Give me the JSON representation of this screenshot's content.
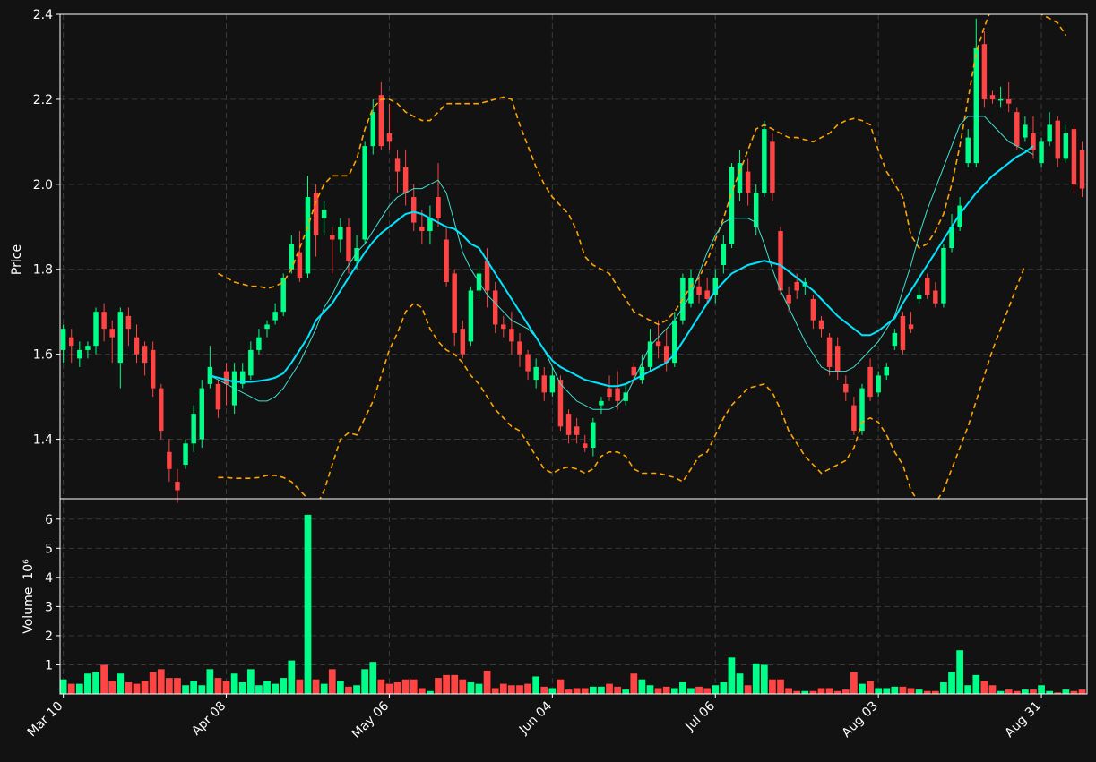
{
  "chart_data": {
    "type": "candlestick",
    "colors": {
      "background": "#121212",
      "up": "#00ff88",
      "down": "#ff4444",
      "sma_short": "#40e0d0",
      "sma_long": "#00e5ff",
      "bollinger": "#ffa500",
      "grid": "#3a3a3a",
      "text": "#ffffff"
    },
    "price_panel": {
      "ylabel": "Price",
      "ylim": [
        1.26,
        2.4
      ],
      "yticks": [
        1.4,
        1.6,
        1.8,
        2.0,
        2.2,
        2.4
      ],
      "ytick_labels": [
        "1.4",
        "1.6",
        "1.8",
        "2.0",
        "2.2",
        "2.4"
      ],
      "grid": true
    },
    "volume_panel": {
      "ylabel": "Volume",
      "ylabel_unit": "10⁶",
      "ylim": [
        0,
        6.7
      ],
      "yticks": [
        1,
        2,
        3,
        4,
        5,
        6
      ],
      "ytick_labels": [
        "1",
        "2",
        "3",
        "4",
        "5",
        "6"
      ],
      "grid": true
    },
    "xlim": [
      -0.4,
      125.6
    ],
    "x_ticks": [
      {
        "index": 0,
        "label": "Mar 10"
      },
      {
        "index": 20,
        "label": "Apr 08"
      },
      {
        "index": 40,
        "label": "May 06"
      },
      {
        "index": 60,
        "label": "Jun 04"
      },
      {
        "index": 80,
        "label": "Jul 06"
      },
      {
        "index": 100,
        "label": "Aug 03"
      },
      {
        "index": 120,
        "label": "Aug 31"
      }
    ],
    "ohlc": [
      [
        1.61,
        1.66,
        1.67,
        1.58
      ],
      [
        1.64,
        1.62,
        1.66,
        1.58
      ],
      [
        1.59,
        1.61,
        1.63,
        1.57
      ],
      [
        1.61,
        1.62,
        1.63,
        1.59
      ],
      [
        1.62,
        1.7,
        1.71,
        1.6
      ],
      [
        1.7,
        1.66,
        1.72,
        1.63
      ],
      [
        1.66,
        1.64,
        1.68,
        1.58
      ],
      [
        1.58,
        1.7,
        1.71,
        1.52
      ],
      [
        1.69,
        1.66,
        1.71,
        1.62
      ],
      [
        1.64,
        1.6,
        1.67,
        1.58
      ],
      [
        1.62,
        1.58,
        1.63,
        1.55
      ],
      [
        1.61,
        1.52,
        1.63,
        1.5
      ],
      [
        1.52,
        1.42,
        1.53,
        1.4
      ],
      [
        1.37,
        1.33,
        1.4,
        1.3
      ],
      [
        1.3,
        1.28,
        1.33,
        1.25
      ],
      [
        1.34,
        1.39,
        1.4,
        1.33
      ],
      [
        1.39,
        1.46,
        1.48,
        1.37
      ],
      [
        1.4,
        1.52,
        1.54,
        1.38
      ],
      [
        1.53,
        1.57,
        1.62,
        1.52
      ],
      [
        1.53,
        1.47,
        1.54,
        1.45
      ],
      [
        1.56,
        1.53,
        1.58,
        1.48
      ],
      [
        1.48,
        1.56,
        1.58,
        1.46
      ],
      [
        1.53,
        1.56,
        1.58,
        1.52
      ],
      [
        1.55,
        1.61,
        1.63,
        1.54
      ],
      [
        1.61,
        1.64,
        1.66,
        1.6
      ],
      [
        1.66,
        1.67,
        1.68,
        1.64
      ],
      [
        1.68,
        1.7,
        1.72,
        1.67
      ],
      [
        1.7,
        1.78,
        1.79,
        1.69
      ],
      [
        1.8,
        1.86,
        1.88,
        1.79
      ],
      [
        1.84,
        1.78,
        1.89,
        1.77
      ],
      [
        1.79,
        1.97,
        2.02,
        1.78
      ],
      [
        1.98,
        1.88,
        2.0,
        1.83
      ],
      [
        1.92,
        1.94,
        1.96,
        1.88
      ],
      [
        1.88,
        1.87,
        1.9,
        1.79
      ],
      [
        1.87,
        1.9,
        1.92,
        1.84
      ],
      [
        1.9,
        1.82,
        1.92,
        1.79
      ],
      [
        1.82,
        1.85,
        1.88,
        1.8
      ],
      [
        1.87,
        2.09,
        2.1,
        1.86
      ],
      [
        2.09,
        2.17,
        2.2,
        2.07
      ],
      [
        2.21,
        2.09,
        2.24,
        2.08
      ],
      [
        2.12,
        2.1,
        2.19,
        2.08
      ],
      [
        2.06,
        2.03,
        2.08,
        1.98
      ],
      [
        2.04,
        1.98,
        2.08,
        1.95
      ],
      [
        1.97,
        1.91,
        2.0,
        1.89
      ],
      [
        1.9,
        1.89,
        1.94,
        1.86
      ],
      [
        1.89,
        1.92,
        1.95,
        1.86
      ],
      [
        1.97,
        1.92,
        2.05,
        1.9
      ],
      [
        1.87,
        1.77,
        1.9,
        1.76
      ],
      [
        1.79,
        1.65,
        1.8,
        1.62
      ],
      [
        1.66,
        1.6,
        1.68,
        1.59
      ],
      [
        1.63,
        1.75,
        1.76,
        1.62
      ],
      [
        1.75,
        1.79,
        1.81,
        1.73
      ],
      [
        1.82,
        1.75,
        1.85,
        1.71
      ],
      [
        1.75,
        1.67,
        1.77,
        1.65
      ],
      [
        1.67,
        1.66,
        1.69,
        1.64
      ],
      [
        1.66,
        1.63,
        1.7,
        1.6
      ],
      [
        1.63,
        1.6,
        1.65,
        1.57
      ],
      [
        1.6,
        1.56,
        1.61,
        1.54
      ],
      [
        1.54,
        1.57,
        1.59,
        1.52
      ],
      [
        1.55,
        1.51,
        1.57,
        1.49
      ],
      [
        1.51,
        1.55,
        1.57,
        1.5
      ],
      [
        1.54,
        1.43,
        1.55,
        1.42
      ],
      [
        1.46,
        1.41,
        1.47,
        1.39
      ],
      [
        1.43,
        1.41,
        1.45,
        1.39
      ],
      [
        1.39,
        1.38,
        1.41,
        1.37
      ],
      [
        1.38,
        1.44,
        1.45,
        1.36
      ],
      [
        1.48,
        1.49,
        1.5,
        1.46
      ],
      [
        1.52,
        1.5,
        1.55,
        1.49
      ],
      [
        1.52,
        1.49,
        1.56,
        1.47
      ],
      [
        1.49,
        1.51,
        1.53,
        1.48
      ],
      [
        1.57,
        1.55,
        1.58,
        1.53
      ],
      [
        1.54,
        1.57,
        1.6,
        1.53
      ],
      [
        1.57,
        1.63,
        1.66,
        1.56
      ],
      [
        1.63,
        1.62,
        1.68,
        1.59
      ],
      [
        1.62,
        1.58,
        1.66,
        1.56
      ],
      [
        1.58,
        1.68,
        1.7,
        1.57
      ],
      [
        1.68,
        1.78,
        1.79,
        1.67
      ],
      [
        1.72,
        1.78,
        1.8,
        1.71
      ],
      [
        1.76,
        1.74,
        1.79,
        1.72
      ],
      [
        1.75,
        1.73,
        1.78,
        1.72
      ],
      [
        1.74,
        1.78,
        1.8,
        1.72
      ],
      [
        1.81,
        1.86,
        1.88,
        1.79
      ],
      [
        1.86,
        2.04,
        2.05,
        1.85
      ],
      [
        1.98,
        2.05,
        2.08,
        1.96
      ],
      [
        2.03,
        1.98,
        2.06,
        1.95
      ],
      [
        1.9,
        1.98,
        2.0,
        1.88
      ],
      [
        1.98,
        2.13,
        2.15,
        1.97
      ],
      [
        2.1,
        1.98,
        2.12,
        1.96
      ],
      [
        1.89,
        1.75,
        1.9,
        1.74
      ],
      [
        1.74,
        1.72,
        1.76,
        1.7
      ],
      [
        1.77,
        1.75,
        1.79,
        1.73
      ],
      [
        1.76,
        1.77,
        1.78,
        1.74
      ],
      [
        1.73,
        1.68,
        1.74,
        1.66
      ],
      [
        1.68,
        1.66,
        1.69,
        1.64
      ],
      [
        1.64,
        1.57,
        1.65,
        1.55
      ],
      [
        1.62,
        1.56,
        1.64,
        1.54
      ],
      [
        1.53,
        1.51,
        1.55,
        1.49
      ],
      [
        1.48,
        1.42,
        1.5,
        1.41
      ],
      [
        1.42,
        1.52,
        1.53,
        1.41
      ],
      [
        1.57,
        1.5,
        1.59,
        1.49
      ],
      [
        1.51,
        1.55,
        1.56,
        1.5
      ],
      [
        1.55,
        1.57,
        1.58,
        1.54
      ],
      [
        1.62,
        1.65,
        1.66,
        1.61
      ],
      [
        1.69,
        1.61,
        1.7,
        1.6
      ],
      [
        1.67,
        1.66,
        1.7,
        1.65
      ],
      [
        1.73,
        1.74,
        1.76,
        1.72
      ],
      [
        1.78,
        1.74,
        1.79,
        1.73
      ],
      [
        1.75,
        1.72,
        1.77,
        1.71
      ],
      [
        1.72,
        1.85,
        1.86,
        1.71
      ],
      [
        1.85,
        1.9,
        1.93,
        1.84
      ],
      [
        1.9,
        1.95,
        1.97,
        1.89
      ],
      [
        2.05,
        2.11,
        2.13,
        2.04
      ],
      [
        2.05,
        2.32,
        2.39,
        2.04
      ],
      [
        2.33,
        2.2,
        2.36,
        2.18
      ],
      [
        2.21,
        2.2,
        2.22,
        2.19
      ],
      [
        2.2,
        2.2,
        2.23,
        2.18
      ],
      [
        2.2,
        2.19,
        2.24,
        2.17
      ],
      [
        2.17,
        2.09,
        2.18,
        2.08
      ],
      [
        2.11,
        2.14,
        2.16,
        2.1
      ],
      [
        2.12,
        2.08,
        2.16,
        2.06
      ],
      [
        2.05,
        2.1,
        2.11,
        2.04
      ],
      [
        2.1,
        2.14,
        2.17,
        2.09
      ],
      [
        2.15,
        2.06,
        2.16,
        2.04
      ],
      [
        2.06,
        2.12,
        2.14,
        2.05
      ],
      [
        2.13,
        2.0,
        2.14,
        1.98
      ],
      [
        2.08,
        1.99,
        2.1,
        1.97
      ]
    ],
    "volume": [
      0.5,
      0.35,
      0.35,
      0.7,
      0.75,
      1.0,
      0.45,
      0.7,
      0.4,
      0.35,
      0.45,
      0.75,
      0.85,
      0.55,
      0.55,
      0.3,
      0.45,
      0.3,
      0.85,
      0.55,
      0.45,
      0.7,
      0.4,
      0.85,
      0.3,
      0.45,
      0.35,
      0.55,
      1.15,
      0.5,
      6.15,
      0.5,
      0.35,
      0.85,
      0.45,
      0.25,
      0.3,
      0.85,
      1.1,
      0.5,
      0.35,
      0.4,
      0.5,
      0.5,
      0.2,
      0.1,
      0.55,
      0.65,
      0.65,
      0.5,
      0.4,
      0.35,
      0.8,
      0.2,
      0.35,
      0.3,
      0.3,
      0.35,
      0.6,
      0.25,
      0.2,
      0.5,
      0.15,
      0.2,
      0.2,
      0.25,
      0.25,
      0.35,
      0.25,
      0.15,
      0.7,
      0.5,
      0.3,
      0.2,
      0.25,
      0.2,
      0.4,
      0.2,
      0.25,
      0.2,
      0.3,
      0.4,
      1.25,
      0.7,
      0.3,
      1.05,
      1.0,
      0.5,
      0.5,
      0.2,
      0.1,
      0.1,
      0.1,
      0.2,
      0.2,
      0.1,
      0.15,
      0.75,
      0.35,
      0.45,
      0.2,
      0.2,
      0.25,
      0.25,
      0.2,
      0.15,
      0.1,
      0.1,
      0.4,
      0.75,
      1.5,
      0.3,
      0.65,
      0.45,
      0.3,
      0.1,
      0.15,
      0.1,
      0.15,
      0.15,
      0.3,
      0.1,
      0.05,
      0.15,
      0.1,
      0.15
    ],
    "sma_short": {
      "start": 18,
      "values": [
        1.55,
        1.54,
        1.53,
        1.52,
        1.51,
        1.5,
        1.49,
        1.49,
        1.5,
        1.52,
        1.55,
        1.58,
        1.62,
        1.66,
        1.71,
        1.74,
        1.78,
        1.81,
        1.84,
        1.86,
        1.89,
        1.92,
        1.95,
        1.97,
        1.98,
        1.99,
        1.99,
        2.0,
        2.01,
        1.98,
        1.91,
        1.84,
        1.8,
        1.77,
        1.74,
        1.72,
        1.7,
        1.68,
        1.67,
        1.66,
        1.64,
        1.61,
        1.57,
        1.53,
        1.51,
        1.49,
        1.48,
        1.47,
        1.47,
        1.47,
        1.48,
        1.5,
        1.54,
        1.58,
        1.62,
        1.64,
        1.66,
        1.68,
        1.71,
        1.74,
        1.79,
        1.84,
        1.88,
        1.91,
        1.92,
        1.92,
        1.92,
        1.91,
        1.86,
        1.8,
        1.75,
        1.71,
        1.67,
        1.63,
        1.6,
        1.57,
        1.56,
        1.56,
        1.56,
        1.57,
        1.59,
        1.61,
        1.63,
        1.66,
        1.69,
        1.75,
        1.81,
        1.88,
        1.94,
        1.99,
        2.04,
        2.09,
        2.14,
        2.16,
        2.16,
        2.16,
        2.14,
        2.12,
        2.1,
        2.09,
        2.08,
        2.07
      ]
    },
    "sma_long": {
      "start": 18,
      "values": [
        1.55,
        1.545,
        1.54,
        1.535,
        1.535,
        1.535,
        1.537,
        1.54,
        1.545,
        1.555,
        1.58,
        1.61,
        1.64,
        1.68,
        1.7,
        1.72,
        1.75,
        1.78,
        1.81,
        1.84,
        1.865,
        1.885,
        1.9,
        1.915,
        1.93,
        1.935,
        1.93,
        1.92,
        1.91,
        1.9,
        1.895,
        1.88,
        1.86,
        1.85,
        1.82,
        1.79,
        1.76,
        1.73,
        1.7,
        1.67,
        1.64,
        1.61,
        1.585,
        1.57,
        1.56,
        1.55,
        1.54,
        1.535,
        1.53,
        1.525,
        1.525,
        1.53,
        1.54,
        1.55,
        1.56,
        1.57,
        1.58,
        1.6,
        1.63,
        1.66,
        1.69,
        1.72,
        1.75,
        1.77,
        1.79,
        1.8,
        1.81,
        1.815,
        1.82,
        1.815,
        1.81,
        1.795,
        1.78,
        1.765,
        1.75,
        1.73,
        1.71,
        1.69,
        1.675,
        1.66,
        1.645,
        1.645,
        1.655,
        1.67,
        1.685,
        1.72,
        1.75,
        1.78,
        1.81,
        1.84,
        1.87,
        1.9,
        1.93,
        1.955,
        1.98,
        2.0,
        2.02,
        2.035,
        2.05,
        2.065,
        2.075,
        2.09
      ]
    },
    "bollinger_upper": {
      "start": 19,
      "values": [
        1.79,
        1.78,
        1.77,
        1.765,
        1.76,
        1.76,
        1.755,
        1.76,
        1.77,
        1.8,
        1.85,
        1.9,
        1.96,
        2.0,
        2.02,
        2.02,
        2.02,
        2.06,
        2.13,
        2.18,
        2.2,
        2.2,
        2.19,
        2.17,
        2.16,
        2.15,
        2.15,
        2.17,
        2.19,
        2.19,
        2.19,
        2.19,
        2.19,
        2.195,
        2.2,
        2.205,
        2.2,
        2.14,
        2.09,
        2.04,
        2.0,
        1.97,
        1.95,
        1.93,
        1.89,
        1.83,
        1.81,
        1.8,
        1.79,
        1.76,
        1.73,
        1.7,
        1.69,
        1.68,
        1.67,
        1.68,
        1.7,
        1.73,
        1.76,
        1.78,
        1.82,
        1.87,
        1.92,
        1.98,
        2.03,
        2.08,
        2.13,
        2.14,
        2.13,
        2.12,
        2.11,
        2.11,
        2.105,
        2.1,
        2.11,
        2.12,
        2.14,
        2.15,
        2.155,
        2.15,
        2.14,
        2.08,
        2.03,
        2.0,
        1.97,
        1.88,
        1.85,
        1.86,
        1.89,
        1.93,
        2.0,
        2.09,
        2.2,
        2.31,
        2.37,
        2.42,
        2.46,
        2.47,
        2.44,
        2.42,
        2.41,
        2.4,
        2.39,
        2.38,
        2.35
      ]
    },
    "bollinger_lower": {
      "start": 19,
      "values": [
        1.31,
        1.31,
        1.308,
        1.308,
        1.308,
        1.31,
        1.315,
        1.315,
        1.31,
        1.3,
        1.28,
        1.26,
        1.24,
        1.28,
        1.34,
        1.4,
        1.415,
        1.41,
        1.45,
        1.49,
        1.55,
        1.61,
        1.65,
        1.7,
        1.72,
        1.71,
        1.66,
        1.63,
        1.61,
        1.6,
        1.58,
        1.55,
        1.53,
        1.5,
        1.47,
        1.45,
        1.43,
        1.42,
        1.39,
        1.36,
        1.33,
        1.32,
        1.33,
        1.335,
        1.33,
        1.32,
        1.33,
        1.36,
        1.37,
        1.37,
        1.36,
        1.33,
        1.32,
        1.32,
        1.32,
        1.315,
        1.31,
        1.3,
        1.33,
        1.36,
        1.37,
        1.41,
        1.45,
        1.48,
        1.5,
        1.52,
        1.525,
        1.53,
        1.51,
        1.47,
        1.42,
        1.39,
        1.36,
        1.34,
        1.32,
        1.33,
        1.34,
        1.35,
        1.38,
        1.44,
        1.45,
        1.44,
        1.41,
        1.37,
        1.34,
        1.28,
        1.25,
        1.24,
        1.25,
        1.28,
        1.33,
        1.38,
        1.43,
        1.49,
        1.55,
        1.61,
        1.66,
        1.71,
        1.76,
        1.81
      ]
    }
  }
}
